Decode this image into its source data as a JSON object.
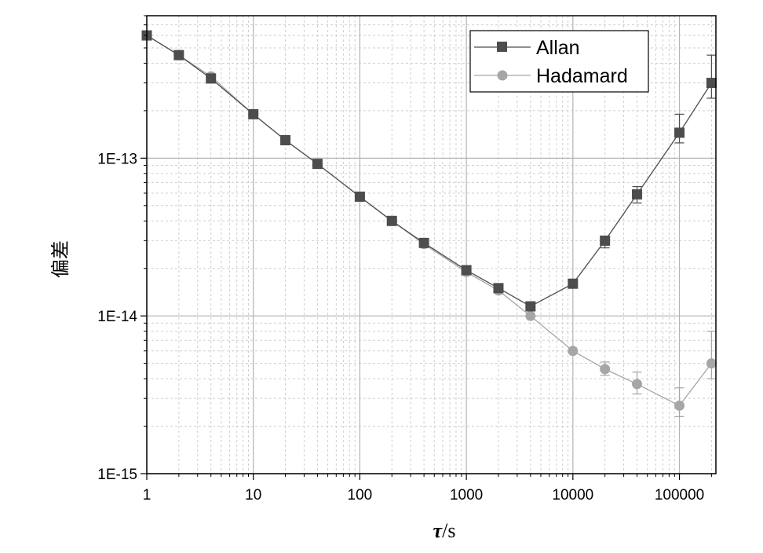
{
  "chart_data": {
    "type": "line",
    "xscale": "log",
    "yscale": "log",
    "xlim": [
      1,
      220000
    ],
    "ylim": [
      1e-15,
      8e-13
    ],
    "xlabel_symbol": "τ",
    "xlabel_unit": "/s",
    "ylabel": "偏差",
    "x_tick_labels": [
      "1",
      "10",
      "100",
      "1000",
      "10000",
      "100000"
    ],
    "x_ticks": [
      1,
      10,
      100,
      1000,
      10000,
      100000
    ],
    "y_tick_labels": [
      "1E-15",
      "1E-14",
      "1E-13"
    ],
    "y_ticks": [
      1e-15,
      1e-14,
      1e-13
    ],
    "grid": true,
    "legend_position": "top-right",
    "series": [
      {
        "name": "Allan",
        "marker": "square",
        "color": "#4d4d4d",
        "x": [
          1,
          2,
          4,
          10,
          20,
          40,
          100,
          200,
          400,
          1000,
          2000,
          4000,
          10000,
          20000,
          40000,
          100000,
          200000
        ],
        "y": [
          6e-13,
          4.5e-13,
          3.2e-13,
          1.9e-13,
          1.3e-13,
          9.2e-14,
          5.7e-14,
          4e-14,
          2.9e-14,
          1.95e-14,
          1.5e-14,
          1.15e-14,
          1.6e-14,
          3e-14,
          5.9e-14,
          1.45e-13,
          3e-13
        ],
        "err_low": [
          null,
          null,
          null,
          null,
          null,
          null,
          null,
          null,
          null,
          null,
          null,
          null,
          null,
          2.7e-14,
          5.2e-14,
          1.25e-13,
          2.4e-13
        ],
        "err_high": [
          null,
          null,
          null,
          null,
          null,
          null,
          null,
          null,
          null,
          null,
          null,
          null,
          null,
          3.2e-14,
          6.6e-14,
          1.9e-13,
          4.5e-13
        ]
      },
      {
        "name": "Hadamard",
        "marker": "circle",
        "color": "#a6a6a6",
        "x": [
          1,
          2,
          4,
          10,
          20,
          40,
          100,
          200,
          400,
          1000,
          2000,
          4000,
          10000,
          20000,
          40000,
          100000,
          200000
        ],
        "y": [
          6e-13,
          4.5e-13,
          3.3e-13,
          1.9e-13,
          1.3e-13,
          9.2e-14,
          5.7e-14,
          4e-14,
          2.85e-14,
          1.9e-14,
          1.45e-14,
          1e-14,
          6e-15,
          4.6e-15,
          3.7e-15,
          2.7e-15,
          5e-15
        ],
        "err_low": [
          null,
          null,
          null,
          null,
          null,
          null,
          null,
          null,
          null,
          null,
          null,
          null,
          null,
          4.2e-15,
          3.2e-15,
          2.3e-15,
          4e-15
        ],
        "err_high": [
          null,
          null,
          null,
          null,
          null,
          null,
          null,
          null,
          null,
          null,
          null,
          null,
          null,
          5.1e-15,
          4.4e-15,
          3.5e-15,
          8e-15
        ]
      }
    ]
  }
}
